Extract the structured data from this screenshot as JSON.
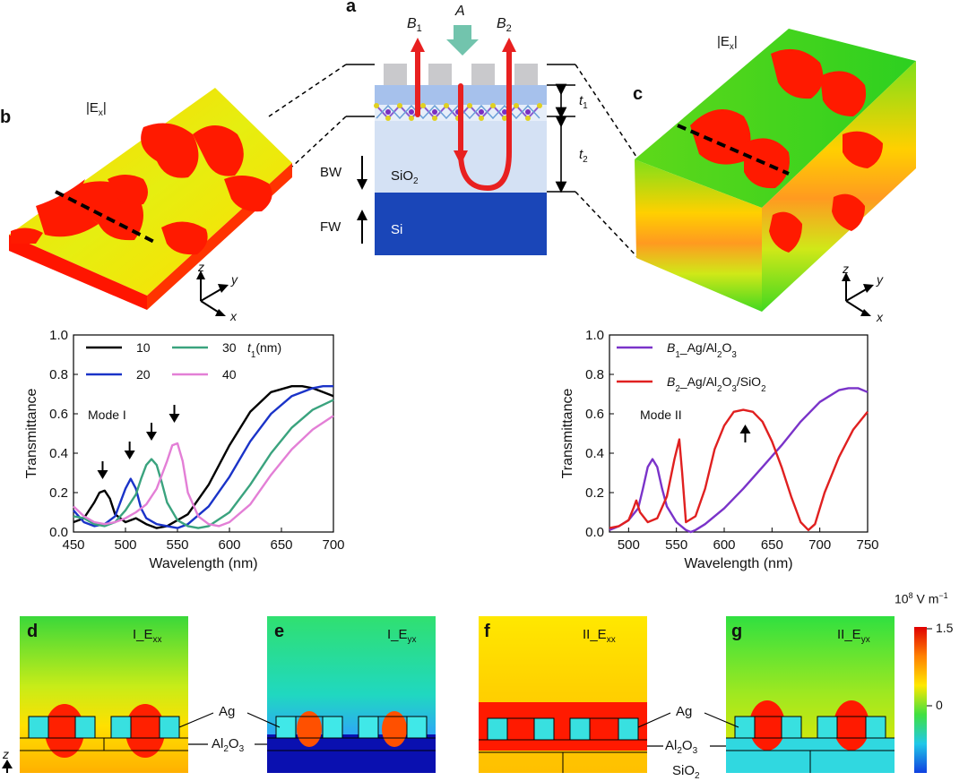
{
  "panel_labels": {
    "a": "a",
    "b": "b",
    "c": "c",
    "d": "d",
    "e": "e",
    "f": "f",
    "g": "g"
  },
  "schematic": {
    "beam_A": "A",
    "beam_B1": "B",
    "beam_B1_sub": "1",
    "beam_B2": "B",
    "beam_B2_sub": "2",
    "t1": "t",
    "t1_sub": "1",
    "t2": "t",
    "t2_sub": "2",
    "bw": "BW",
    "fw": "FW",
    "sio2": "SiO",
    "sio2_sub": "2",
    "si": "Si"
  },
  "field_b": {
    "label_pre": "|E",
    "label_sub": "x",
    "label_post": "|"
  },
  "field_c": {
    "label_pre": "|E",
    "label_sub": "x",
    "label_post": "|"
  },
  "axes_triad": {
    "z": "z",
    "y": "y",
    "x": "x"
  },
  "colorbar": {
    "unit_base": "10",
    "unit_exp": "8",
    "unit_rest": " V m",
    "unit_exp2": "−1",
    "tick_max": "1.5",
    "tick_zero": "0"
  },
  "maps": {
    "d": {
      "title_pre": "I_E",
      "title_sub": "xx"
    },
    "e": {
      "title_pre": "I_E",
      "title_sub": "yx"
    },
    "f": {
      "title_pre": "II_E",
      "title_sub": "xx"
    },
    "g": {
      "title_pre": "II_E",
      "title_sub": "yx"
    },
    "ag": "Ag",
    "al2o3_pre": "Al",
    "al2o3_sub1": "2",
    "al2o3_mid": "O",
    "al2o3_sub2": "3",
    "sio2_pre": "SiO",
    "sio2_sub": "2",
    "z_axis": "z"
  },
  "chart_data": [
    {
      "type": "line",
      "panel": "b-lower",
      "xlabel": "Wavelength (nm)",
      "ylabel": "Transmittance",
      "xlim": [
        450,
        700
      ],
      "ylim": [
        0.0,
        1.0
      ],
      "xticks": [
        "450",
        "500",
        "550",
        "600",
        "650",
        "700"
      ],
      "yticks": [
        "0.0",
        "0.2",
        "0.4",
        "0.6",
        "0.8",
        "1.0"
      ],
      "legend_title": "t",
      "legend_title_sub": "1",
      "legend_title_post": "(nm)",
      "annotation": "Mode I",
      "arrow_x": [
        478,
        504,
        525,
        547
      ],
      "series": [
        {
          "name": "10",
          "color": "#000000",
          "x": [
            450,
            460,
            470,
            475,
            480,
            485,
            490,
            500,
            510,
            520,
            530,
            540,
            560,
            580,
            600,
            620,
            640,
            660,
            670,
            680,
            690,
            700
          ],
          "y": [
            0.05,
            0.07,
            0.15,
            0.2,
            0.21,
            0.17,
            0.09,
            0.05,
            0.07,
            0.04,
            0.02,
            0.03,
            0.09,
            0.24,
            0.44,
            0.61,
            0.71,
            0.74,
            0.74,
            0.73,
            0.71,
            0.69
          ]
        },
        {
          "name": "20",
          "color": "#1a33c8",
          "x": [
            450,
            460,
            470,
            480,
            490,
            500,
            505,
            510,
            515,
            520,
            530,
            540,
            550,
            560,
            580,
            600,
            620,
            640,
            660,
            680,
            690,
            700
          ],
          "y": [
            0.11,
            0.05,
            0.03,
            0.04,
            0.08,
            0.22,
            0.27,
            0.22,
            0.12,
            0.07,
            0.04,
            0.03,
            0.02,
            0.04,
            0.13,
            0.28,
            0.46,
            0.6,
            0.69,
            0.73,
            0.74,
            0.74
          ]
        },
        {
          "name": "30",
          "color": "#3aa37e",
          "x": [
            450,
            460,
            470,
            480,
            490,
            500,
            510,
            515,
            520,
            525,
            530,
            535,
            540,
            550,
            560,
            570,
            580,
            600,
            620,
            640,
            660,
            680,
            700
          ],
          "y": [
            0.08,
            0.07,
            0.04,
            0.03,
            0.05,
            0.11,
            0.19,
            0.27,
            0.34,
            0.37,
            0.34,
            0.25,
            0.15,
            0.06,
            0.03,
            0.02,
            0.03,
            0.1,
            0.24,
            0.4,
            0.53,
            0.62,
            0.67
          ]
        },
        {
          "name": "40",
          "color": "#e37fd6",
          "x": [
            450,
            460,
            470,
            480,
            490,
            500,
            510,
            520,
            530,
            540,
            545,
            550,
            555,
            560,
            570,
            580,
            590,
            600,
            620,
            640,
            660,
            680,
            700
          ],
          "y": [
            0.13,
            0.08,
            0.05,
            0.04,
            0.05,
            0.07,
            0.1,
            0.14,
            0.22,
            0.36,
            0.44,
            0.45,
            0.36,
            0.2,
            0.08,
            0.04,
            0.03,
            0.05,
            0.14,
            0.29,
            0.42,
            0.52,
            0.59
          ]
        }
      ]
    },
    {
      "type": "line",
      "panel": "c-lower",
      "xlabel": "Wavelength (nm)",
      "ylabel": "Transmittance",
      "xlim": [
        480,
        750
      ],
      "ylim": [
        0.0,
        1.0
      ],
      "xticks": [
        "500",
        "550",
        "600",
        "650",
        "700",
        "750"
      ],
      "xtick_values": [
        500,
        550,
        600,
        650,
        700,
        750
      ],
      "yticks": [
        "0.0",
        "0.2",
        "0.4",
        "0.6",
        "0.8",
        "1.0"
      ],
      "annotation": "Mode II",
      "arrow_x": [
        622
      ],
      "series": [
        {
          "name_pre": "B",
          "name_sub1": "1",
          "name_post": "_Ag/Al",
          "name_sub2": "2",
          "name_mid": "O",
          "name_sub3": "3",
          "color": "#7a33c9",
          "x": [
            480,
            490,
            500,
            510,
            515,
            520,
            525,
            530,
            535,
            540,
            550,
            560,
            565,
            570,
            580,
            600,
            620,
            640,
            660,
            680,
            700,
            720,
            730,
            740,
            750
          ],
          "y": [
            0.01,
            0.03,
            0.06,
            0.12,
            0.22,
            0.33,
            0.37,
            0.33,
            0.22,
            0.13,
            0.05,
            0.01,
            0.0,
            0.01,
            0.04,
            0.12,
            0.22,
            0.33,
            0.44,
            0.56,
            0.66,
            0.72,
            0.73,
            0.73,
            0.71
          ]
        },
        {
          "name_pre": "B",
          "name_sub1": "2",
          "name_post": "_Ag/Al",
          "name_sub2": "2",
          "name_mid": "O",
          "name_sub3": "3",
          "name_tail": "/SiO",
          "name_sub4": "2",
          "color": "#e02020",
          "x": [
            480,
            490,
            500,
            505,
            508,
            512,
            520,
            530,
            540,
            548,
            553,
            556,
            560,
            570,
            580,
            590,
            600,
            610,
            620,
            630,
            640,
            650,
            660,
            670,
            680,
            688,
            695,
            705,
            720,
            735,
            750
          ],
          "y": [
            0.02,
            0.03,
            0.06,
            0.12,
            0.16,
            0.1,
            0.05,
            0.07,
            0.18,
            0.37,
            0.47,
            0.3,
            0.05,
            0.08,
            0.22,
            0.42,
            0.54,
            0.61,
            0.62,
            0.61,
            0.56,
            0.46,
            0.33,
            0.18,
            0.05,
            0.01,
            0.04,
            0.2,
            0.38,
            0.52,
            0.61
          ]
        }
      ]
    }
  ]
}
